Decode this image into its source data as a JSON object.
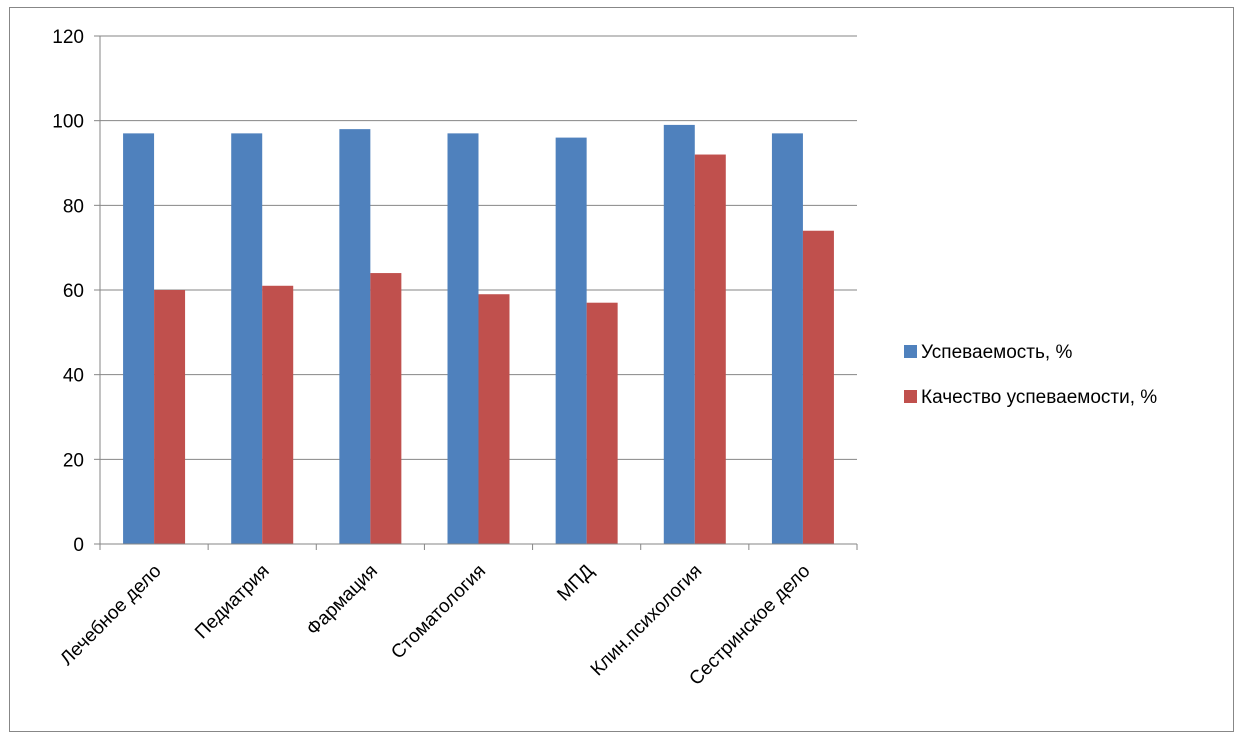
{
  "chart_data": {
    "type": "bar",
    "categories": [
      "Лечебное дело",
      "Педиатрия",
      "Фармация",
      "Стоматология",
      "МПД",
      "Клин.психология",
      "Сестринское дело"
    ],
    "series": [
      {
        "name": "Успеваемость, %",
        "color": "#4F81BD",
        "values": [
          97,
          97,
          98,
          97,
          96,
          99,
          97
        ]
      },
      {
        "name": "Качество успеваемости, %",
        "color": "#C0504D",
        "values": [
          60,
          61,
          64,
          59,
          57,
          92,
          74
        ]
      }
    ],
    "ylim": [
      0,
      120
    ],
    "yticks": [
      0,
      20,
      40,
      60,
      80,
      100,
      120
    ],
    "grid": true,
    "legend_position": "right",
    "xlabel_rotation": "-45deg"
  }
}
